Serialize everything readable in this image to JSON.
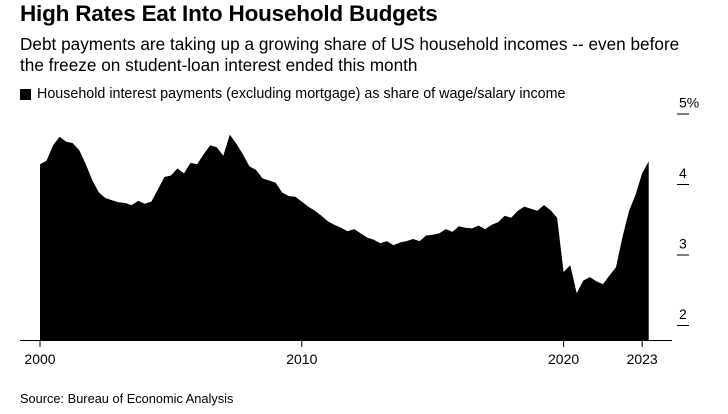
{
  "title": "High Rates Eat Into Household Budgets",
  "subtitle": "Debt payments are taking up a growing share of US household incomes -- even before the freeze on student-loan interest ended this month",
  "source": "Source: Bureau of Economic Analysis",
  "colors": {
    "fill": "#000000",
    "text": "#000000",
    "axis": "#000000"
  },
  "chart_data": {
    "type": "area",
    "title": "High Rates Eat Into Household Budgets",
    "legend": "Household interest payments (excluding mortgage) as share of wage/salary income",
    "y_unit_label": "5%",
    "y_ticks": [
      2,
      3,
      4,
      5
    ],
    "y_tick_labels": [
      "2",
      "3",
      "4",
      "5%"
    ],
    "x_ticks": [
      2000,
      2010,
      2020,
      2023
    ],
    "x_tick_labels": [
      "2000",
      "2010",
      "2020",
      "2023"
    ],
    "ylim": [
      1.8,
      5.1
    ],
    "xlim": [
      2000,
      2023.5
    ],
    "grid": false,
    "series": [
      {
        "name": "Household interest payments (excluding mortgage) as share of wage/salary income",
        "x": [
          2000.0,
          2000.25,
          2000.5,
          2000.75,
          2001.0,
          2001.25,
          2001.5,
          2001.75,
          2002.0,
          2002.25,
          2002.5,
          2002.75,
          2003.0,
          2003.25,
          2003.5,
          2003.75,
          2004.0,
          2004.25,
          2004.5,
          2004.75,
          2005.0,
          2005.25,
          2005.5,
          2005.75,
          2006.0,
          2006.25,
          2006.5,
          2006.75,
          2007.0,
          2007.25,
          2007.5,
          2007.75,
          2008.0,
          2008.25,
          2008.5,
          2008.75,
          2009.0,
          2009.25,
          2009.5,
          2009.75,
          2010.0,
          2010.25,
          2010.5,
          2010.75,
          2011.0,
          2011.25,
          2011.5,
          2011.75,
          2012.0,
          2012.25,
          2012.5,
          2012.75,
          2013.0,
          2013.25,
          2013.5,
          2013.75,
          2014.0,
          2014.25,
          2014.5,
          2014.75,
          2015.0,
          2015.25,
          2015.5,
          2015.75,
          2016.0,
          2016.25,
          2016.5,
          2016.75,
          2017.0,
          2017.25,
          2017.5,
          2017.75,
          2018.0,
          2018.25,
          2018.5,
          2018.75,
          2019.0,
          2019.25,
          2019.5,
          2019.75,
          2020.0,
          2020.25,
          2020.5,
          2020.75,
          2021.0,
          2021.25,
          2021.5,
          2021.75,
          2022.0,
          2022.25,
          2022.5,
          2022.75,
          2023.0,
          2023.25
        ],
        "values": [
          4.28,
          4.33,
          4.55,
          4.67,
          4.6,
          4.58,
          4.48,
          4.28,
          4.05,
          3.88,
          3.8,
          3.77,
          3.74,
          3.73,
          3.7,
          3.76,
          3.72,
          3.75,
          3.92,
          4.1,
          4.12,
          4.22,
          4.15,
          4.3,
          4.28,
          4.42,
          4.55,
          4.52,
          4.4,
          4.7,
          4.57,
          4.42,
          4.25,
          4.2,
          4.08,
          4.05,
          4.02,
          3.88,
          3.83,
          3.82,
          3.75,
          3.68,
          3.62,
          3.55,
          3.47,
          3.42,
          3.38,
          3.33,
          3.36,
          3.3,
          3.24,
          3.21,
          3.16,
          3.19,
          3.13,
          3.17,
          3.19,
          3.22,
          3.19,
          3.27,
          3.28,
          3.3,
          3.36,
          3.32,
          3.4,
          3.38,
          3.37,
          3.41,
          3.36,
          3.42,
          3.46,
          3.55,
          3.52,
          3.62,
          3.68,
          3.65,
          3.62,
          3.7,
          3.63,
          3.52,
          2.75,
          2.85,
          2.45,
          2.63,
          2.68,
          2.62,
          2.58,
          2.7,
          2.82,
          3.25,
          3.62,
          3.85,
          4.15,
          4.32
        ]
      }
    ]
  }
}
